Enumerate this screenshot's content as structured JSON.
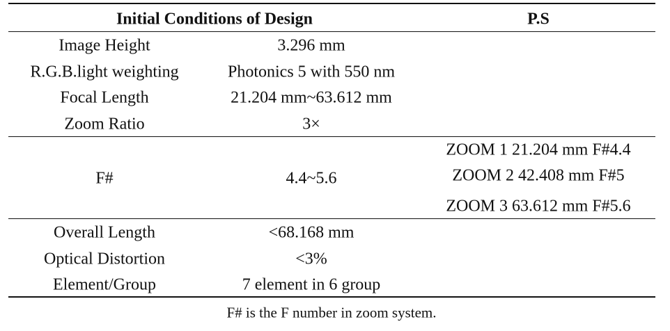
{
  "table": {
    "header": [
      "Initial Conditions of Design",
      "P.S"
    ],
    "sections": [
      [
        {
          "label": "Image Height",
          "value": "3.296 mm"
        },
        {
          "label": "R.G.B.light weighting",
          "value": "Photonics 5 with 550 nm"
        },
        {
          "label": "Focal Length",
          "value": "21.204 mm~63.612 mm"
        },
        {
          "label": "Zoom Ratio",
          "value": "3×"
        }
      ],
      [
        {
          "label": "F#",
          "value": "4.4~5.6",
          "notes": [
            "ZOOM 1 21.204 mm F#4.4",
            "ZOOM 2 42.408 mm F#5",
            "ZOOM 3 63.612 mm F#5.6"
          ]
        }
      ],
      [
        {
          "label": "Overall Length",
          "value": "<68.168 mm"
        },
        {
          "label": "Optical Distortion",
          "value": "<3%"
        },
        {
          "label": "Element/Group",
          "value": "7 element in 6 group"
        }
      ]
    ],
    "footnote": "F# is the F number in zoom system."
  }
}
